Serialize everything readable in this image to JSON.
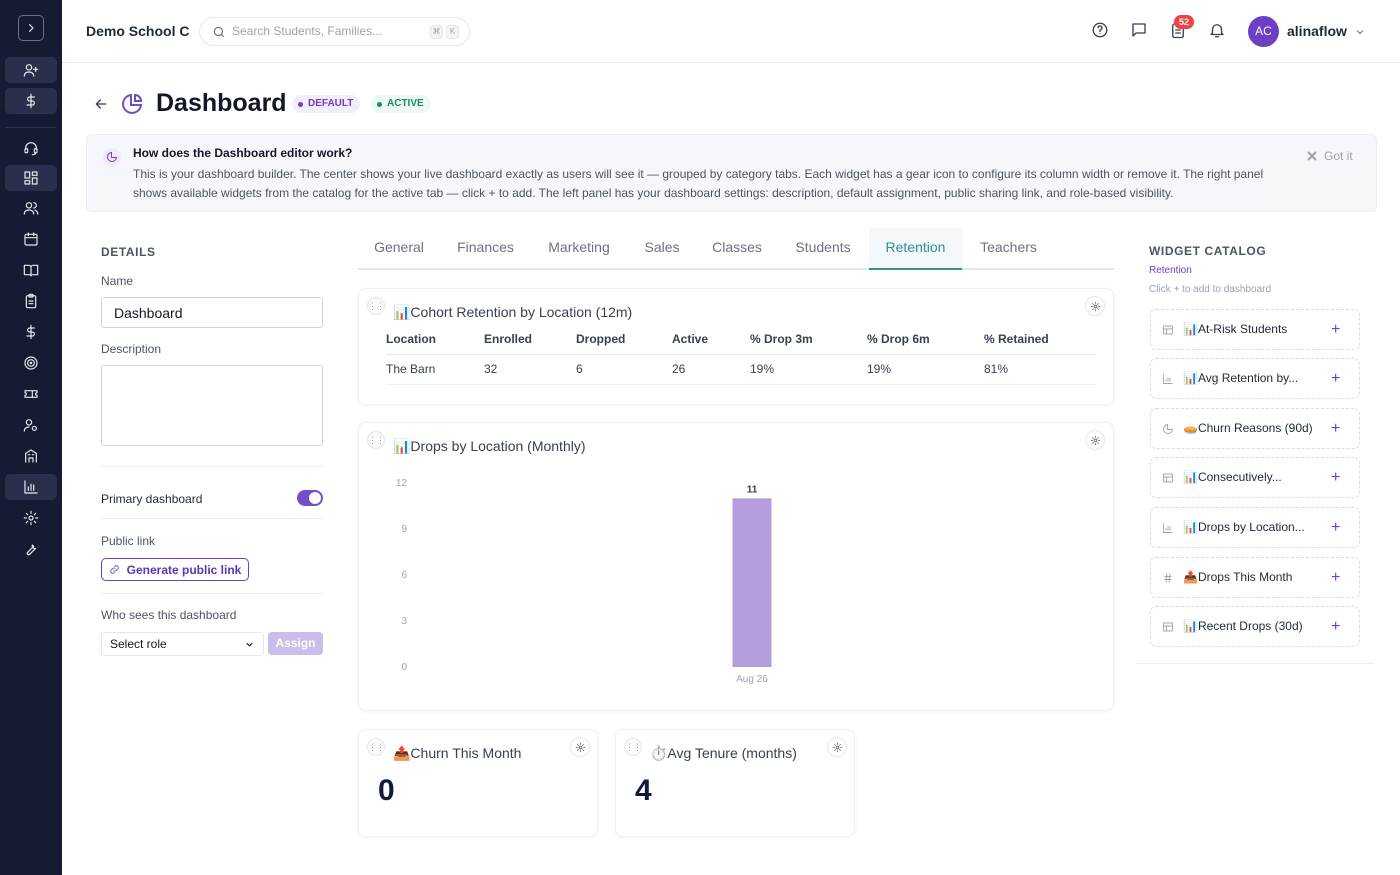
{
  "topbar": {
    "school_name": "Demo School C",
    "search_placeholder": "Search Students, Families...",
    "shortcut_keys": [
      "⌘",
      "K"
    ],
    "notification_count": "52",
    "user_initials": "AC",
    "username": "alinaflow"
  },
  "sidebar": {
    "top_icons": [
      "add-user-icon",
      "dollar-icon"
    ],
    "nav_icons": [
      "headset-icon",
      "dashboard-icon",
      "users-icon",
      "calendar-icon",
      "book-icon",
      "clipboard-icon",
      "dollar-icon",
      "target-icon",
      "ticket-icon",
      "user-settings-icon",
      "building-icon",
      "bar-chart-icon",
      "settings-icon",
      "wrench-icon"
    ],
    "active": "bar-chart-icon"
  },
  "page": {
    "title": "Dashboard",
    "badges": {
      "default": "DEFAULT",
      "active": "ACTIVE"
    }
  },
  "info": {
    "title": "How does the Dashboard editor work?",
    "body": "This is your dashboard builder. The center shows your live dashboard exactly as users will see it — grouped by category tabs. Each widget has a gear icon to configure its column width or remove it. The right panel shows available widgets from the catalog for the active tab — click + to add. The left panel has your dashboard settings: description, default assignment, public sharing link, and role-based visibility.",
    "dismiss": "Got it"
  },
  "details": {
    "section_title": "DETAILS",
    "name_label": "Name",
    "name_value": "Dashboard",
    "description_label": "Description",
    "description_value": "",
    "primary_label": "Primary dashboard",
    "primary_on": true,
    "public_link_label": "Public link",
    "generate_button": "Generate public link",
    "visibility_label": "Who sees this dashboard",
    "role_select": "Select role",
    "assign_button": "Assign"
  },
  "tabs": [
    "General",
    "Finances",
    "Marketing",
    "Sales",
    "Classes",
    "Students",
    "Retention",
    "Teachers"
  ],
  "active_tab": "Retention",
  "widgets": {
    "cohort": {
      "title": "📊Cohort Retention by Location (12m)",
      "columns": [
        "Location",
        "Enrolled",
        "Dropped",
        "Active",
        "% Drop 3m",
        "% Drop 6m",
        "% Retained"
      ],
      "rows": [
        [
          "The Barn",
          "32",
          "6",
          "26",
          "19%",
          "19%",
          "81%"
        ]
      ]
    },
    "drops": {
      "title": "📊Drops by Location (Monthly)"
    },
    "churn": {
      "title": "📤Churn This Month",
      "value": "0"
    },
    "tenure": {
      "title": "⏱️Avg Tenure (months)",
      "value": "4"
    }
  },
  "chart_data": {
    "type": "bar",
    "categories": [
      "Aug 26"
    ],
    "values": [
      11
    ],
    "data_labels": [
      "11"
    ],
    "ylim": [
      0,
      12
    ],
    "yticks": [
      "0",
      "3",
      "6",
      "9",
      "12"
    ],
    "bar_color": "#b39ddb",
    "grid": false
  },
  "catalog": {
    "title": "WIDGET CATALOG",
    "tab": "Retention",
    "hint": "Click + to add to dashboard",
    "items": [
      {
        "label": "📊At-Risk Students",
        "icon": "table-icon"
      },
      {
        "label": "📊Avg Retention by...",
        "icon": "bar-chart-icon"
      },
      {
        "label": "🥧Churn Reasons (90d)",
        "icon": "pie-chart-icon"
      },
      {
        "label": "📊Consecutively...",
        "icon": "table-icon"
      },
      {
        "label": "📊Drops by Location...",
        "icon": "bar-chart-icon"
      },
      {
        "label": "📤Drops This Month",
        "icon": "hash-icon"
      },
      {
        "label": "📊Recent Drops (30d)",
        "icon": "table-icon"
      }
    ],
    "add_symbol": "+"
  }
}
